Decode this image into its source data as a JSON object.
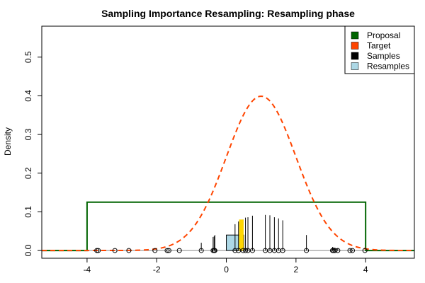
{
  "chart_data": {
    "type": "line",
    "title": "Sampling Importance Resampling: Resampling phase",
    "xlabel": "",
    "ylabel": "Density",
    "xlim": [
      -5.3,
      5.4
    ],
    "ylim": [
      -0.02,
      0.58
    ],
    "x_ticks": [
      -4,
      -2,
      0,
      2,
      4
    ],
    "y_ticks": [
      0.0,
      0.1,
      0.2,
      0.3,
      0.4,
      0.5
    ],
    "x_tick_labels": [
      "-4",
      "-2",
      "0",
      "2",
      "4"
    ],
    "y_tick_labels": [
      "0.0",
      "0.1",
      "0.2",
      "0.3",
      "0.4",
      "0.5"
    ],
    "legend_position": "top-right",
    "legend": [
      {
        "label": "Proposal",
        "color": "#006400"
      },
      {
        "label": "Target",
        "color": "#FF4500"
      },
      {
        "label": "Samples",
        "color": "#000000"
      },
      {
        "label": "Resamples",
        "color": "#ADD8E6"
      }
    ],
    "proposal": {
      "distribution": "uniform",
      "min": -4,
      "max": 4,
      "density": 0.125,
      "color": "#006400"
    },
    "target": {
      "distribution": "normal",
      "mean": 1,
      "sd": 1,
      "color": "#FF4500",
      "line": "dashed"
    },
    "samples": [
      -3.72,
      -3.68,
      -3.2,
      -2.8,
      -2.05,
      -1.7,
      -1.65,
      -1.35,
      -0.72,
      -0.38,
      -0.35,
      -0.33,
      0.25,
      0.35,
      0.48,
      0.55,
      0.62,
      0.75,
      1.12,
      1.25,
      1.38,
      1.5,
      1.62,
      2.3,
      3.05,
      3.08,
      3.12,
      3.2,
      3.55,
      3.62,
      3.98
    ],
    "sample_weights": [
      0.0,
      0.0,
      0.0,
      0.0,
      0.0,
      0.0,
      0.0,
      0.0,
      0.02,
      0.035,
      0.037,
      0.04,
      0.068,
      0.075,
      0.08,
      0.085,
      0.086,
      0.09,
      0.092,
      0.091,
      0.086,
      0.083,
      0.078,
      0.04,
      0.009,
      0.008,
      0.007,
      0.006,
      0.003,
      0.002,
      0.0
    ],
    "resamples_histogram": [
      {
        "bin": [
          0,
          0.5
        ],
        "density": 0.04,
        "color": "#ADD8E6"
      }
    ],
    "resample_points": [
      0.38,
      0.4,
      0.42,
      0.44,
      0.46,
      0.48
    ],
    "resample_color": "#FFD700"
  }
}
